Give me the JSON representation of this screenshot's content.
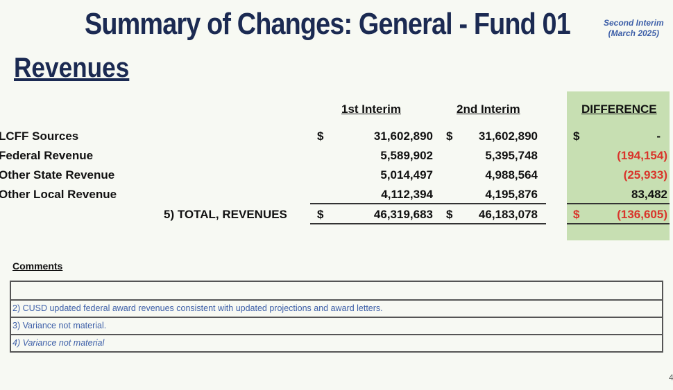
{
  "title": "Summary of Changes: General - Fund 01",
  "subtitle": [
    "Second Interim",
    "(March 2025)"
  ],
  "section": "Revenues",
  "headers": {
    "col1": "1st Interim",
    "col2": "2nd Interim",
    "diff": "DIFFERENCE"
  },
  "rows": [
    {
      "label": "LCFF Sources",
      "c1": "31,602,890",
      "c2": "31,602,890",
      "diff": "-",
      "dollar": "$"
    },
    {
      "label": "Federal Revenue",
      "c1": "5,589,902",
      "c2": "5,395,748",
      "diff": "(194,154)"
    },
    {
      "label": "Other State Revenue",
      "c1": "5,014,497",
      "c2": "4,988,564",
      "diff": "(25,933)"
    },
    {
      "label": "Other Local Revenue",
      "c1": "4,112,394",
      "c2": "4,195,876",
      "diff": "83,482"
    }
  ],
  "total": {
    "label": "5) TOTAL, REVENUES",
    "c1": "46,319,683",
    "c2": "46,183,078",
    "diff": "(136,605)",
    "dollar": "$"
  },
  "comments": {
    "label": "Comments",
    "items": [
      "",
      "2) CUSD updated federal award revenues consistent with updated projections and award letters.",
      "3) Variance not material.",
      "4) Variance not material"
    ]
  },
  "page_number": "4",
  "colors": {
    "title": "#1b2a52",
    "diff_bg": "#c7dfb2",
    "negative": "#d9342b",
    "comment": "#3d5fa8"
  }
}
